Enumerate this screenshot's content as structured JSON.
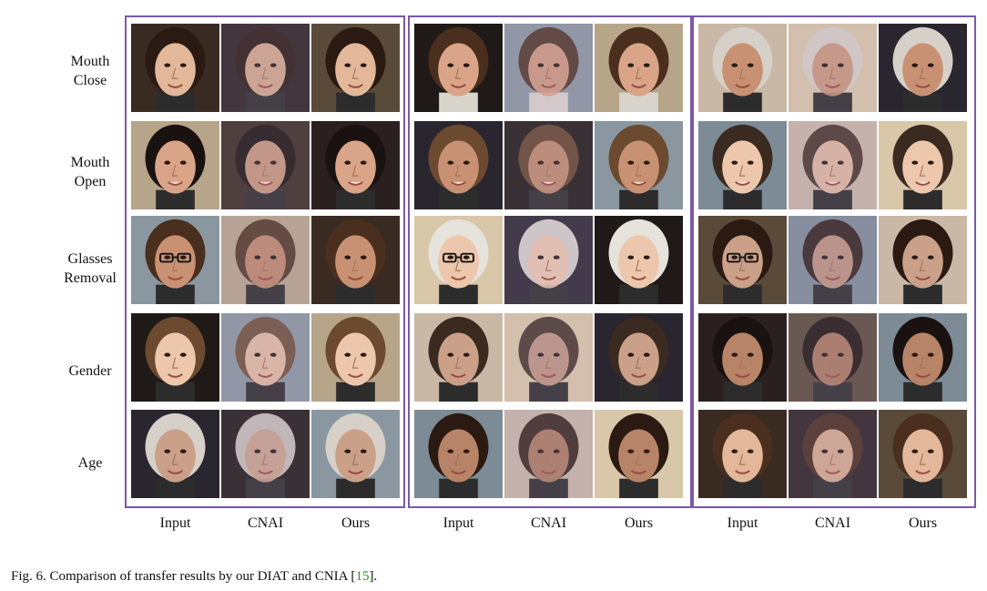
{
  "row_labels": [
    {
      "line1": "Mouth",
      "line2": "Close"
    },
    {
      "line1": "Mouth",
      "line2": "Open"
    },
    {
      "line1": "Glasses",
      "line2": "Removal"
    },
    {
      "line1": "Gender",
      "line2": ""
    },
    {
      "line1": "Age",
      "line2": ""
    }
  ],
  "column_labels": [
    "Input",
    "CNAI",
    "Ours",
    "Input",
    "CNAI",
    "Ours",
    "Input",
    "CNAI",
    "Ours"
  ],
  "caption": {
    "prefix": "Fig. 6.  Comparison of transfer results by our DIAT and CNIA [",
    "ref": "15",
    "suffix": "]."
  },
  "colors": {
    "panel_border": "#7a5aa6",
    "citation_link": "#1aa01a"
  }
}
